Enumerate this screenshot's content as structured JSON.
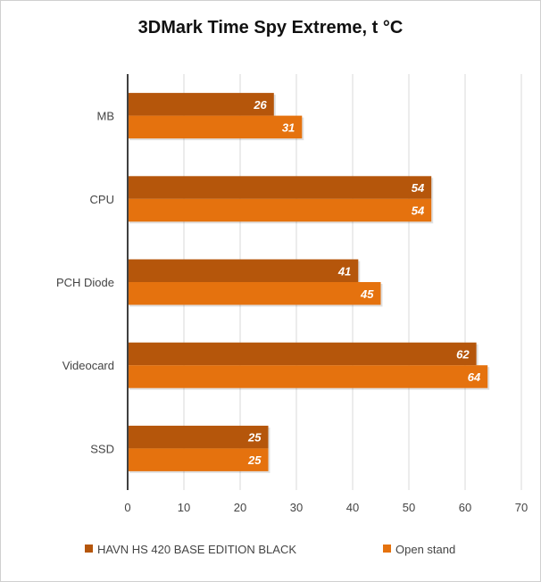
{
  "chart_data": {
    "type": "bar",
    "orientation": "horizontal",
    "title": "3DMark Time Spy Extreme, t °C",
    "categories": [
      "MB",
      "CPU",
      "PCH Diode",
      "Videocard",
      "SSD"
    ],
    "series": [
      {
        "name": "HAVN HS 420 BASE EDITION BLACK",
        "color": "#b5560b",
        "values": [
          26,
          54,
          41,
          62,
          25
        ]
      },
      {
        "name": "Open stand",
        "color": "#e5720e",
        "values": [
          31,
          54,
          45,
          64,
          25
        ]
      }
    ],
    "xlim": [
      0,
      70
    ],
    "xticks": [
      0,
      10,
      20,
      30,
      40,
      50,
      60,
      70
    ],
    "grid": true,
    "legend": "bottom"
  }
}
